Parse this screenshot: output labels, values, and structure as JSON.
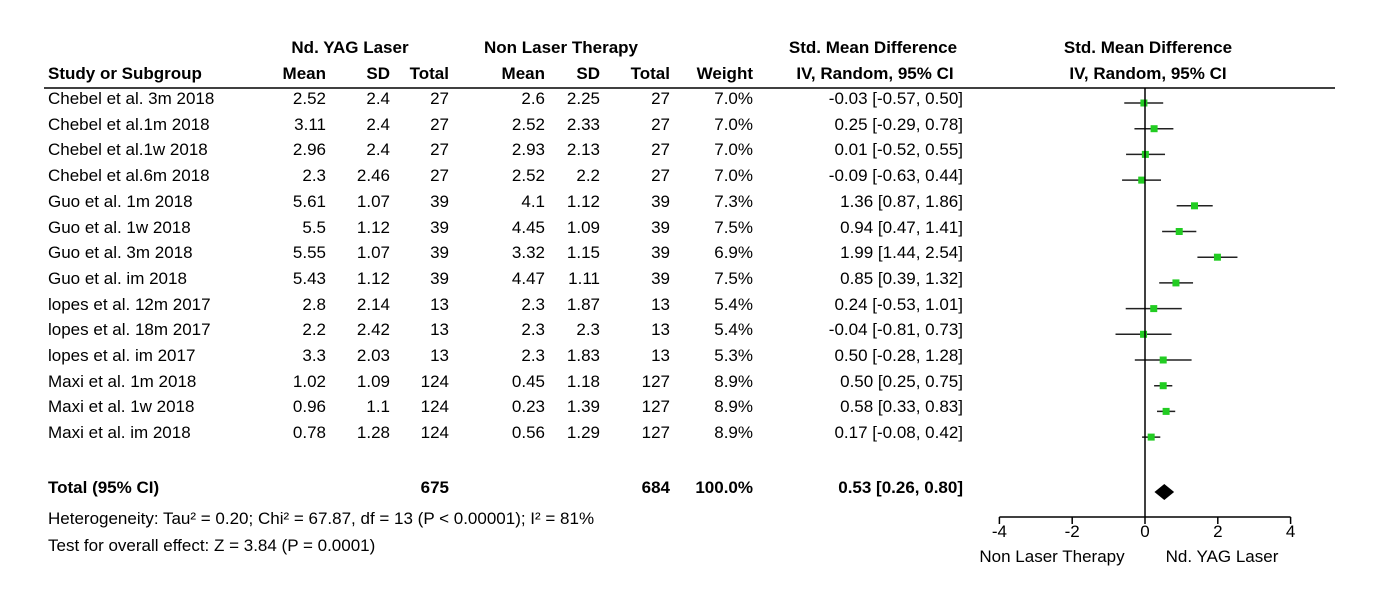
{
  "header": {
    "group1": "Nd. YAG Laser",
    "group2": "Non Laser Therapy",
    "effect_table": "Std. Mean Difference",
    "effect_plot": "Std. Mean Difference",
    "method_table": "IV, Random, 95% CI",
    "method_plot": "IV, Random, 95% CI",
    "col_study": "Study or Subgroup",
    "col_mean1": "Mean",
    "col_sd1": "SD",
    "col_total1": "Total",
    "col_mean2": "Mean",
    "col_sd2": "SD",
    "col_total2": "Total",
    "col_weight": "Weight"
  },
  "studies": [
    {
      "name": "Chebel et al. 3m 2018",
      "mean1": "2.52",
      "sd1": "2.4",
      "n1": "27",
      "mean2": "2.6",
      "sd2": "2.25",
      "n2": "27",
      "weight": "7.0%",
      "ci": "-0.03 [-0.57, 0.50]",
      "smd": -0.03,
      "lo": -0.57,
      "hi": 0.5
    },
    {
      "name": "Chebel et al.1m 2018",
      "mean1": "3.11",
      "sd1": "2.4",
      "n1": "27",
      "mean2": "2.52",
      "sd2": "2.33",
      "n2": "27",
      "weight": "7.0%",
      "ci": "0.25 [-0.29, 0.78]",
      "smd": 0.25,
      "lo": -0.29,
      "hi": 0.78
    },
    {
      "name": "Chebel et al.1w  2018",
      "mean1": "2.96",
      "sd1": "2.4",
      "n1": "27",
      "mean2": "2.93",
      "sd2": "2.13",
      "n2": "27",
      "weight": "7.0%",
      "ci": "0.01 [-0.52, 0.55]",
      "smd": 0.01,
      "lo": -0.52,
      "hi": 0.55
    },
    {
      "name": "Chebel et al.6m  2018",
      "mean1": "2.3",
      "sd1": "2.46",
      "n1": "27",
      "mean2": "2.52",
      "sd2": "2.2",
      "n2": "27",
      "weight": "7.0%",
      "ci": "-0.09 [-0.63, 0.44]",
      "smd": -0.09,
      "lo": -0.63,
      "hi": 0.44
    },
    {
      "name": "Guo et al. 1m 2018",
      "mean1": "5.61",
      "sd1": "1.07",
      "n1": "39",
      "mean2": "4.1",
      "sd2": "1.12",
      "n2": "39",
      "weight": "7.3%",
      "ci": "1.36 [0.87, 1.86]",
      "smd": 1.36,
      "lo": 0.87,
      "hi": 1.86
    },
    {
      "name": "Guo et al. 1w 2018",
      "mean1": "5.5",
      "sd1": "1.12",
      "n1": "39",
      "mean2": "4.45",
      "sd2": "1.09",
      "n2": "39",
      "weight": "7.5%",
      "ci": "0.94 [0.47, 1.41]",
      "smd": 0.94,
      "lo": 0.47,
      "hi": 1.41
    },
    {
      "name": "Guo et al. 3m 2018",
      "mean1": "5.55",
      "sd1": "1.07",
      "n1": "39",
      "mean2": "3.32",
      "sd2": "1.15",
      "n2": "39",
      "weight": "6.9%",
      "ci": "1.99 [1.44, 2.54]",
      "smd": 1.99,
      "lo": 1.44,
      "hi": 2.54
    },
    {
      "name": "Guo et al. im 2018",
      "mean1": "5.43",
      "sd1": "1.12",
      "n1": "39",
      "mean2": "4.47",
      "sd2": "1.11",
      "n2": "39",
      "weight": "7.5%",
      "ci": "0.85 [0.39, 1.32]",
      "smd": 0.85,
      "lo": 0.39,
      "hi": 1.32
    },
    {
      "name": "lopes et al. 12m  2017",
      "mean1": "2.8",
      "sd1": "2.14",
      "n1": "13",
      "mean2": "2.3",
      "sd2": "1.87",
      "n2": "13",
      "weight": "5.4%",
      "ci": "0.24 [-0.53, 1.01]",
      "smd": 0.24,
      "lo": -0.53,
      "hi": 1.01
    },
    {
      "name": "lopes et al. 18m  2017",
      "mean1": "2.2",
      "sd1": "2.42",
      "n1": "13",
      "mean2": "2.3",
      "sd2": "2.3",
      "n2": "13",
      "weight": "5.4%",
      "ci": "-0.04 [-0.81, 0.73]",
      "smd": -0.04,
      "lo": -0.81,
      "hi": 0.73
    },
    {
      "name": "lopes et al. im  2017",
      "mean1": "3.3",
      "sd1": "2.03",
      "n1": "13",
      "mean2": "2.3",
      "sd2": "1.83",
      "n2": "13",
      "weight": "5.3%",
      "ci": "0.50 [-0.28, 1.28]",
      "smd": 0.5,
      "lo": -0.28,
      "hi": 1.28
    },
    {
      "name": "Maxi et al. 1m 2018",
      "mean1": "1.02",
      "sd1": "1.09",
      "n1": "124",
      "mean2": "0.45",
      "sd2": "1.18",
      "n2": "127",
      "weight": "8.9%",
      "ci": "0.50 [0.25, 0.75]",
      "smd": 0.5,
      "lo": 0.25,
      "hi": 0.75
    },
    {
      "name": "Maxi et al. 1w 2018",
      "mean1": "0.96",
      "sd1": "1.1",
      "n1": "124",
      "mean2": "0.23",
      "sd2": "1.39",
      "n2": "127",
      "weight": "8.9%",
      "ci": "0.58 [0.33, 0.83]",
      "smd": 0.58,
      "lo": 0.33,
      "hi": 0.83
    },
    {
      "name": "Maxi et al. im 2018",
      "mean1": "0.78",
      "sd1": "1.28",
      "n1": "124",
      "mean2": "0.56",
      "sd2": "1.29",
      "n2": "127",
      "weight": "8.9%",
      "ci": "0.17 [-0.08, 0.42]",
      "smd": 0.17,
      "lo": -0.08,
      "hi": 0.42
    }
  ],
  "total": {
    "label": "Total (95% CI)",
    "n1": "675",
    "n2": "684",
    "weight": "100.0%",
    "ci": "0.53 [0.26, 0.80]",
    "smd": 0.53,
    "lo": 0.26,
    "hi": 0.8
  },
  "heterogeneity": "Heterogeneity: Tau² = 0.20; Chi² = 67.87, df = 13 (P < 0.00001); I² = 81%",
  "overall_effect": "Test for overall effect: Z = 3.84 (P = 0.0001)",
  "chart_data": {
    "type": "scatter",
    "x_axis": {
      "range": [
        -4,
        4
      ],
      "ticks": [
        -4,
        -2,
        0,
        2,
        4
      ],
      "tick_labels": [
        "-4",
        "-2",
        "0",
        "2",
        "4"
      ]
    },
    "favours_left": "Non Laser Therapy",
    "favours_right": "Nd. YAG Laser",
    "point_color": "#22cc22",
    "diamond_color": "#000000"
  }
}
